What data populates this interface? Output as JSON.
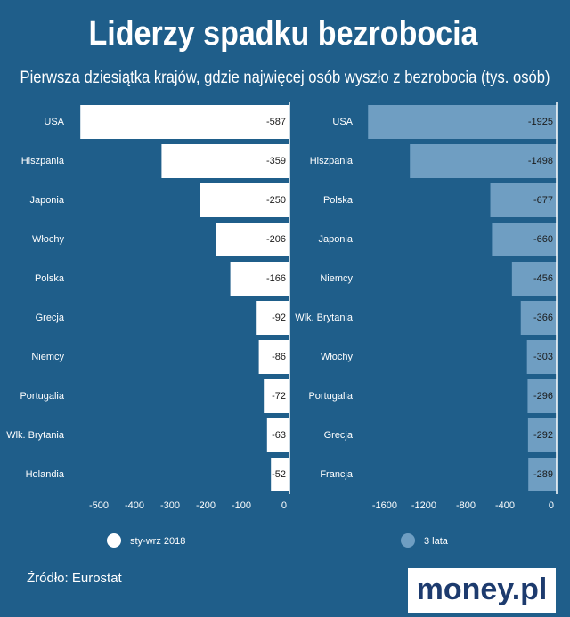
{
  "title": "Liderzy spadku bezrobocia",
  "subtitle": "Pierwsza dziesiątka krajów, gdzie najwięcej osób wyszło z bezrobocia (tys. osób)",
  "source": "Źródło: Eurostat",
  "logo": "money.pl",
  "chart_data": [
    {
      "type": "barh",
      "series": [
        {
          "name": "sty-wrz 2018",
          "color": "#ffffff",
          "values": [
            -587,
            -359,
            -250,
            -206,
            -166,
            -92,
            -86,
            -72,
            -63,
            -52
          ]
        }
      ],
      "categories": [
        "USA",
        "Hiszpania",
        "Japonia",
        "Włochy",
        "Polska",
        "Grecja",
        "Niemcy",
        "Portugalia",
        "Wlk. Brytania",
        "Holandia"
      ],
      "xlim": [
        -600,
        0
      ],
      "xticks": [
        -500,
        -400,
        -300,
        -200,
        -100,
        0
      ]
    },
    {
      "type": "barh",
      "series": [
        {
          "name": "3 lata",
          "color": "#6f9ec2",
          "values": [
            -1925,
            -1498,
            -677,
            -660,
            -456,
            -366,
            -303,
            -296,
            -292,
            -289
          ]
        }
      ],
      "categories": [
        "USA",
        "Hiszpania",
        "Polska",
        "Japonia",
        "Niemcy",
        "Wlk. Brytania",
        "Włochy",
        "Portugalia",
        "Grecja",
        "Francja"
      ],
      "xlim": [
        -2000,
        0
      ],
      "xticks": [
        -1600,
        -1200,
        -800,
        -400,
        0
      ]
    }
  ]
}
